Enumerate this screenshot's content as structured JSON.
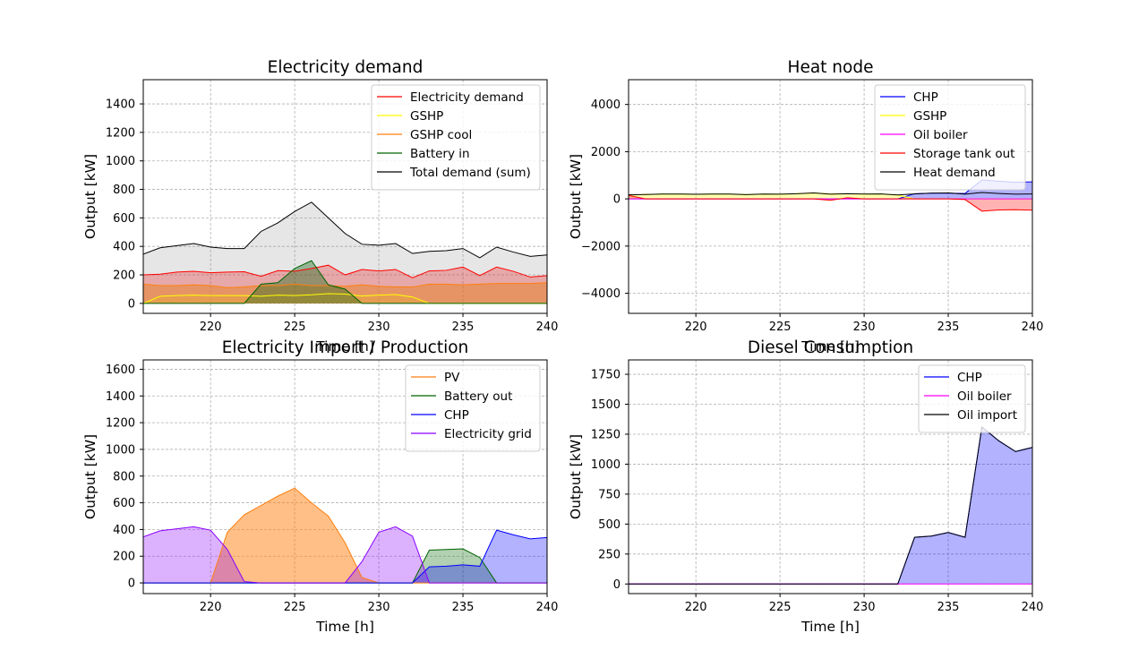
{
  "figure": {
    "background": "#ffffff"
  },
  "chart_data": [
    {
      "type": "area",
      "title": "Electricity demand",
      "xlabel": "Time [h]",
      "ylabel": "Output [kW]",
      "xlim": [
        216,
        240
      ],
      "ylim": [
        -70,
        1570
      ],
      "xticks": [
        220,
        225,
        230,
        235,
        240
      ],
      "yticks": [
        0,
        200,
        400,
        600,
        800,
        1000,
        1200,
        1400
      ],
      "grid": true,
      "legend_position": "top-right",
      "x": [
        216,
        217,
        218,
        219,
        220,
        221,
        222,
        223,
        224,
        225,
        226,
        227,
        228,
        229,
        230,
        231,
        232,
        233,
        234,
        235,
        236,
        237,
        238,
        239,
        240
      ],
      "series": [
        {
          "name": "Electricity demand",
          "color": "#ff0000",
          "fill": "#ff0000",
          "fill_opacity": 0.3,
          "values": [
            200,
            205,
            220,
            225,
            215,
            220,
            222,
            190,
            230,
            225,
            245,
            268,
            200,
            238,
            228,
            238,
            180,
            228,
            232,
            255,
            195,
            255,
            225,
            185,
            195
          ]
        },
        {
          "name": "GSHP",
          "color": "#ffff00",
          "fill": "#ffff00",
          "fill_opacity": 0.3,
          "values": [
            0,
            50,
            55,
            58,
            55,
            55,
            55,
            50,
            58,
            55,
            60,
            68,
            65,
            52,
            58,
            62,
            45,
            0,
            0,
            0,
            0,
            0,
            0,
            0,
            0
          ]
        },
        {
          "name": "GSHP cool",
          "color": "#ff7f0e",
          "fill": "#ff7f0e",
          "fill_opacity": 0.5,
          "values": [
            135,
            125,
            125,
            130,
            125,
            110,
            115,
            125,
            125,
            135,
            125,
            125,
            120,
            130,
            120,
            115,
            115,
            135,
            135,
            130,
            135,
            140,
            140,
            140,
            145
          ]
        },
        {
          "name": "Battery in",
          "color": "#006400",
          "fill": "#006400",
          "fill_opacity": 0.4,
          "values": [
            0,
            0,
            0,
            0,
            0,
            0,
            0,
            135,
            145,
            245,
            300,
            130,
            100,
            0,
            0,
            0,
            0,
            0,
            0,
            0,
            0,
            0,
            0,
            0,
            0
          ]
        },
        {
          "name": "Total demand (sum)",
          "color": "#000000",
          "fill": "#808080",
          "fill_opacity": 0.2,
          "values": [
            345,
            390,
            405,
            420,
            395,
            385,
            385,
            505,
            565,
            645,
            710,
            600,
            490,
            415,
            408,
            420,
            350,
            365,
            370,
            385,
            320,
            395,
            360,
            330,
            340
          ]
        }
      ]
    },
    {
      "type": "area",
      "title": "Heat node",
      "xlabel": "Time [h]",
      "ylabel": "Output [kW]",
      "xlim": [
        216,
        240
      ],
      "ylim": [
        -4850,
        5050
      ],
      "xticks": [
        220,
        225,
        230,
        235,
        240
      ],
      "yticks": [
        -4000,
        -2000,
        0,
        2000,
        4000
      ],
      "grid": true,
      "legend_position": "top-right",
      "x": [
        216,
        217,
        218,
        219,
        220,
        221,
        222,
        223,
        224,
        225,
        226,
        227,
        228,
        229,
        230,
        231,
        232,
        233,
        234,
        235,
        236,
        237,
        238,
        239,
        240
      ],
      "series": [
        {
          "name": "CHP",
          "color": "#0000ff",
          "fill": "#0000ff",
          "fill_opacity": 0.3,
          "values": [
            0,
            0,
            0,
            0,
            0,
            0,
            0,
            0,
            0,
            0,
            0,
            0,
            0,
            0,
            0,
            0,
            0,
            220,
            240,
            240,
            230,
            800,
            750,
            700,
            720
          ]
        },
        {
          "name": "GSHP",
          "color": "#ffff00",
          "fill": "#ffff00",
          "fill_opacity": 0.3,
          "values": [
            165,
            185,
            205,
            205,
            195,
            205,
            205,
            180,
            205,
            200,
            220,
            250,
            210,
            220,
            205,
            210,
            160,
            0,
            0,
            0,
            0,
            0,
            0,
            0,
            0
          ]
        },
        {
          "name": "Oil boiler",
          "color": "#ff00ff",
          "fill": "#ff00ff",
          "fill_opacity": 0.3,
          "values": [
            0,
            0,
            0,
            0,
            0,
            0,
            0,
            0,
            0,
            0,
            0,
            0,
            0,
            0,
            0,
            0,
            0,
            0,
            0,
            0,
            0,
            0,
            0,
            0,
            0
          ]
        },
        {
          "name": "Storage tank out",
          "color": "#ff0000",
          "fill": "#ff0000",
          "fill_opacity": 0.3,
          "values": [
            150,
            0,
            0,
            0,
            0,
            0,
            0,
            0,
            0,
            0,
            0,
            0,
            -60,
            50,
            0,
            0,
            0,
            0,
            0,
            0,
            -30,
            -520,
            -470,
            -460,
            -480
          ]
        },
        {
          "name": "Heat demand",
          "color": "#000000",
          "fill": "none",
          "fill_opacity": 0,
          "values": [
            170,
            185,
            205,
            205,
            195,
            205,
            205,
            180,
            205,
            200,
            220,
            250,
            200,
            220,
            205,
            210,
            165,
            210,
            240,
            250,
            200,
            270,
            230,
            200,
            210
          ]
        }
      ]
    },
    {
      "type": "area",
      "title": "Electricity Import / Production",
      "xlabel": "Time [h]",
      "ylabel": "Output [kW]",
      "xlim": [
        216,
        240
      ],
      "ylim": [
        -80,
        1670
      ],
      "xticks": [
        220,
        225,
        230,
        235,
        240
      ],
      "yticks": [
        0,
        200,
        400,
        600,
        800,
        1000,
        1200,
        1400,
        1600
      ],
      "grid": true,
      "legend_position": "top-right",
      "x": [
        216,
        217,
        218,
        219,
        220,
        221,
        222,
        223,
        224,
        225,
        226,
        227,
        228,
        229,
        230,
        231,
        232,
        233,
        234,
        235,
        236,
        237,
        238,
        239,
        240
      ],
      "series": [
        {
          "name": "PV",
          "color": "#ff7f0e",
          "fill": "#ff7f0e",
          "fill_opacity": 0.5,
          "values": [
            0,
            0,
            0,
            0,
            0,
            380,
            510,
            580,
            650,
            710,
            600,
            500,
            300,
            40,
            0,
            0,
            0,
            0,
            0,
            0,
            0,
            0,
            0,
            0,
            0
          ]
        },
        {
          "name": "Battery out",
          "color": "#006400",
          "fill": "#006400",
          "fill_opacity": 0.3,
          "values": [
            0,
            0,
            0,
            0,
            0,
            0,
            0,
            0,
            0,
            0,
            0,
            0,
            0,
            0,
            0,
            0,
            0,
            245,
            250,
            255,
            190,
            0,
            0,
            0,
            0
          ]
        },
        {
          "name": "CHP",
          "color": "#0000ff",
          "fill": "#0000ff",
          "fill_opacity": 0.3,
          "values": [
            0,
            0,
            0,
            0,
            0,
            0,
            0,
            0,
            0,
            0,
            0,
            0,
            0,
            0,
            0,
            0,
            0,
            120,
            125,
            135,
            125,
            395,
            360,
            330,
            340
          ]
        },
        {
          "name": "Electricity grid",
          "color": "#8a00ff",
          "fill": "#8a00ff",
          "fill_opacity": 0.3,
          "values": [
            345,
            390,
            405,
            420,
            395,
            250,
            10,
            0,
            0,
            0,
            0,
            0,
            0,
            160,
            380,
            420,
            350,
            0,
            0,
            0,
            0,
            0,
            0,
            0,
            0
          ]
        }
      ]
    },
    {
      "type": "area",
      "title": "Diesel Consumption",
      "xlabel": "Time [h]",
      "ylabel": "Output [kW]",
      "xlim": [
        216,
        240
      ],
      "ylim": [
        -80,
        1870
      ],
      "xticks": [
        220,
        225,
        230,
        235,
        240
      ],
      "yticks": [
        0,
        250,
        500,
        750,
        1000,
        1250,
        1500,
        1750
      ],
      "grid": true,
      "legend_position": "top-right",
      "x": [
        216,
        217,
        218,
        219,
        220,
        221,
        222,
        223,
        224,
        225,
        226,
        227,
        228,
        229,
        230,
        231,
        232,
        233,
        234,
        235,
        236,
        237,
        238,
        239,
        240
      ],
      "series": [
        {
          "name": "CHP",
          "color": "#0000ff",
          "fill": "#0000ff",
          "fill_opacity": 0.3,
          "values": [
            0,
            0,
            0,
            0,
            0,
            0,
            0,
            0,
            0,
            0,
            0,
            0,
            0,
            0,
            0,
            0,
            0,
            390,
            400,
            430,
            390,
            1310,
            1195,
            1105,
            1140
          ]
        },
        {
          "name": "Oil boiler",
          "color": "#ff00ff",
          "fill": "#ff00ff",
          "fill_opacity": 0.3,
          "values": [
            0,
            0,
            0,
            0,
            0,
            0,
            0,
            0,
            0,
            0,
            0,
            0,
            0,
            0,
            0,
            0,
            0,
            0,
            0,
            0,
            0,
            0,
            0,
            0,
            0
          ]
        },
        {
          "name": "Oil import",
          "color": "#000000",
          "fill": "none",
          "fill_opacity": 0,
          "values": [
            0,
            0,
            0,
            0,
            0,
            0,
            0,
            0,
            0,
            0,
            0,
            0,
            0,
            0,
            0,
            0,
            0,
            390,
            400,
            430,
            390,
            1310,
            1195,
            1105,
            1140
          ]
        }
      ]
    }
  ]
}
